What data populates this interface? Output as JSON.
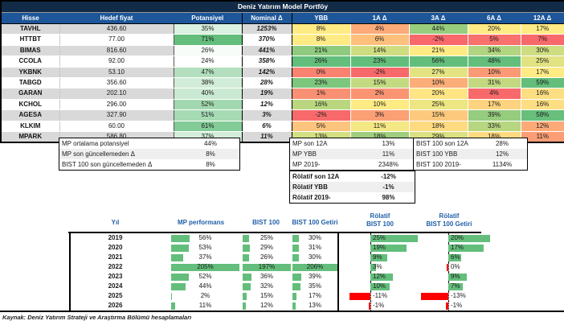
{
  "title": "Deniz Yatırım Model Portföy",
  "footer": "Kaynak: Deniz Yatırım Strateji ve Araştırma Bölümü hesaplamaları",
  "colors": {
    "title_bg": "#122B47",
    "header_bg": "#1D5699",
    "row_alt": "#D9D9D9",
    "row_plain": "#FFFFFF",
    "scale_red": "#F8696B",
    "scale_yellow": "#FFEB84",
    "scale_green": "#63BE7B",
    "scale_white": "#FFFFFF",
    "bar_green": "#63BE7B",
    "bar_red": "#FF0000",
    "blue_text": "#1F5FA8"
  },
  "portfolio_table": {
    "headers": [
      "Hisse",
      "Hedef fiyat",
      "Potansiyel",
      "Nominal Δ",
      "YBB",
      "1A Δ",
      "3A Δ",
      "6A Δ",
      "12A Δ"
    ],
    "rows": [
      {
        "hisse": "TAVHL",
        "hedef": "436.60",
        "potansiyel": 35,
        "nominal": "1253%",
        "ybb": 8,
        "a1": 4,
        "a3": 44,
        "a6": 20,
        "a12": 17
      },
      {
        "hisse": "HTTBT",
        "hedef": "77.00",
        "potansiyel": 71,
        "nominal": "370%",
        "ybb": 8,
        "a1": 6,
        "a3": -2,
        "a6": 5,
        "a12": 7
      },
      {
        "hisse": "BIMAS",
        "hedef": "816.60",
        "potansiyel": 26,
        "nominal": "441%",
        "ybb": 21,
        "a1": 14,
        "a3": 21,
        "a6": 34,
        "a12": 30
      },
      {
        "hisse": "CCOLA",
        "hedef": "92.00",
        "potansiyel": 24,
        "nominal": "358%",
        "ybb": 26,
        "a1": 23,
        "a3": 56,
        "a6": 48,
        "a12": 25
      },
      {
        "hisse": "YKBNK",
        "hedef": "53.10",
        "potansiyel": 47,
        "nominal": "142%",
        "ybb": 0,
        "a1": -2,
        "a3": 27,
        "a6": 10,
        "a12": 17
      },
      {
        "hisse": "TABGD",
        "hedef": "356.60",
        "potansiyel": 38,
        "nominal": "28%",
        "ybb": 23,
        "a1": 15,
        "a3": 10,
        "a6": 31,
        "a12": 59
      },
      {
        "hisse": "GARAN",
        "hedef": "202.10",
        "potansiyel": 40,
        "nominal": "19%",
        "ybb": 1,
        "a1": 2,
        "a3": 20,
        "a6": 4,
        "a12": 16
      },
      {
        "hisse": "KCHOL",
        "hedef": "296.00",
        "potansiyel": 52,
        "nominal": "12%",
        "ybb": 16,
        "a1": 10,
        "a3": 25,
        "a6": 17,
        "a12": 16
      },
      {
        "hisse": "AGESA",
        "hedef": "327.90",
        "potansiyel": 51,
        "nominal": "3%",
        "ybb": -2,
        "a1": 3,
        "a3": 15,
        "a6": 39,
        "a12": 58
      },
      {
        "hisse": "KLKIM",
        "hedef": "60.00",
        "potansiyel": 61,
        "nominal": "6%",
        "ybb": 5,
        "a1": 11,
        "a3": 18,
        "a6": 33,
        "a12": 12
      },
      {
        "hisse": "MPARK",
        "hedef": "586.80",
        "potansiyel": 37,
        "nominal": "11%",
        "ybb": 13,
        "a1": 18,
        "a3": 29,
        "a6": 18,
        "a12": 11
      }
    ]
  },
  "summary": {
    "left": [
      {
        "label": "MP ortalama potansiyel",
        "value": "44%"
      },
      {
        "label": "MP son güncellemeden Δ",
        "value": "8%"
      },
      {
        "label": "BIST 100 son güncellemeden Δ",
        "value": "8%"
      }
    ],
    "mp": [
      {
        "label": "MP son 12A",
        "value": "13%"
      },
      {
        "label": "MP YBB",
        "value": "11%"
      },
      {
        "label": "MP 2019-",
        "value": "2348%"
      }
    ],
    "bist": [
      {
        "label": "BIST 100 son 12A",
        "value": "28%"
      },
      {
        "label": "BIST 100 YBB",
        "value": "12%"
      },
      {
        "label": "BIST 100 2019-",
        "value": "1134%"
      }
    ],
    "relative": [
      {
        "label": "Rölatif son 12A",
        "value": "-12%"
      },
      {
        "label": "Rölatif YBB",
        "value": "-1%"
      },
      {
        "label": "Rölatif 2019-",
        "value": "98%"
      }
    ]
  },
  "chart_data": {
    "type": "bar",
    "col_headers": {
      "year": "Yıl",
      "mp": "MP performans",
      "bist": "BIST 100",
      "getiri": "BIST 100 Getiri",
      "rel1": [
        "Rölatif",
        "BIST 100"
      ],
      "rel2": [
        "Rölatif",
        "BIST 100 Getiri"
      ]
    },
    "categories": [
      2019,
      2020,
      2021,
      2022,
      2023,
      2024,
      2025,
      2026
    ],
    "series": [
      {
        "name": "MP performans",
        "unit": "%",
        "values": [
          56,
          53,
          37,
          205,
          52,
          44,
          2,
          11
        ]
      },
      {
        "name": "BIST 100",
        "unit": "%",
        "values": [
          25,
          29,
          26,
          197,
          36,
          32,
          15,
          12
        ]
      },
      {
        "name": "BIST 100 Getiri",
        "unit": "%",
        "values": [
          30,
          31,
          30,
          206,
          39,
          35,
          17,
          13
        ]
      },
      {
        "name": "Rölatif BIST 100",
        "unit": "%",
        "values": [
          25,
          19,
          9,
          3,
          12,
          10,
          -11,
          -1
        ]
      },
      {
        "name": "Rölatif BIST 100 Getiri",
        "unit": "%",
        "values": [
          20,
          17,
          6,
          0,
          9,
          7,
          -13,
          -1
        ]
      }
    ],
    "legend_position": "none",
    "grid": false
  }
}
